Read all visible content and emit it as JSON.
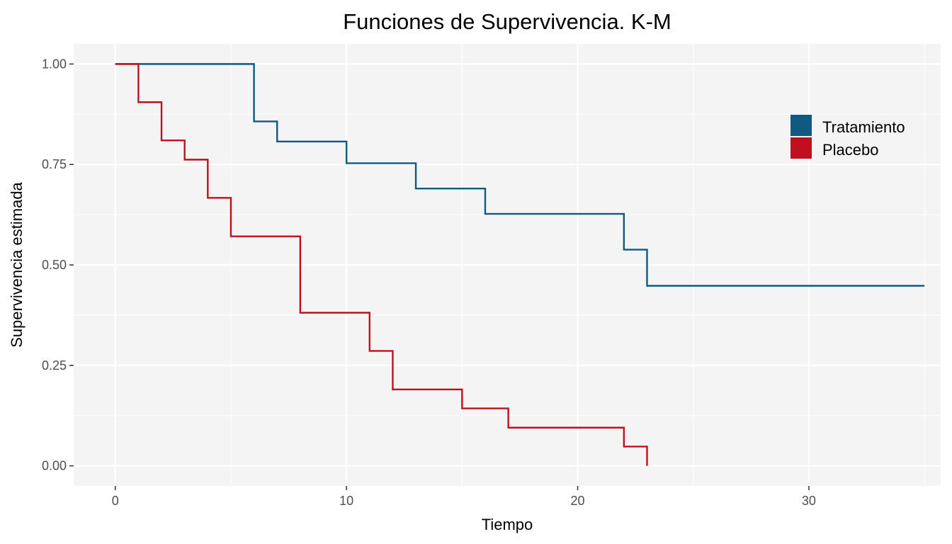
{
  "chart_data": {
    "type": "line",
    "title": "Funciones de Supervivencia. K-M",
    "xlabel": "Tiempo",
    "ylabel": "Supervivencia estimada",
    "xlim": [
      -1.8,
      35.7
    ],
    "ylim": [
      -0.05,
      1.05
    ],
    "x_ticks": [
      0,
      10,
      20,
      30
    ],
    "x_tick_labels": [
      "0",
      "10",
      "20",
      "30"
    ],
    "y_ticks": [
      0,
      0.25,
      0.5,
      0.75,
      1.0
    ],
    "y_tick_labels": [
      "0.00",
      "0.25",
      "0.50",
      "0.75",
      "1.00"
    ],
    "grid": true,
    "legend_position": "top-right",
    "series": [
      {
        "name": "Tratamiento",
        "color": "#0e5a80",
        "step": true,
        "x": [
          0,
          6,
          7,
          10,
          13,
          16,
          22,
          23,
          35
        ],
        "y": [
          1.0,
          0.857,
          0.807,
          0.753,
          0.69,
          0.627,
          0.538,
          0.448,
          0.448
        ]
      },
      {
        "name": "Placebo",
        "color": "#c0101e",
        "step": true,
        "x": [
          0,
          1,
          2,
          3,
          4,
          5,
          8,
          11,
          12,
          15,
          17,
          22,
          23
        ],
        "y": [
          1.0,
          0.905,
          0.81,
          0.762,
          0.667,
          0.571,
          0.381,
          0.286,
          0.19,
          0.143,
          0.095,
          0.048,
          0.0
        ]
      }
    ]
  }
}
